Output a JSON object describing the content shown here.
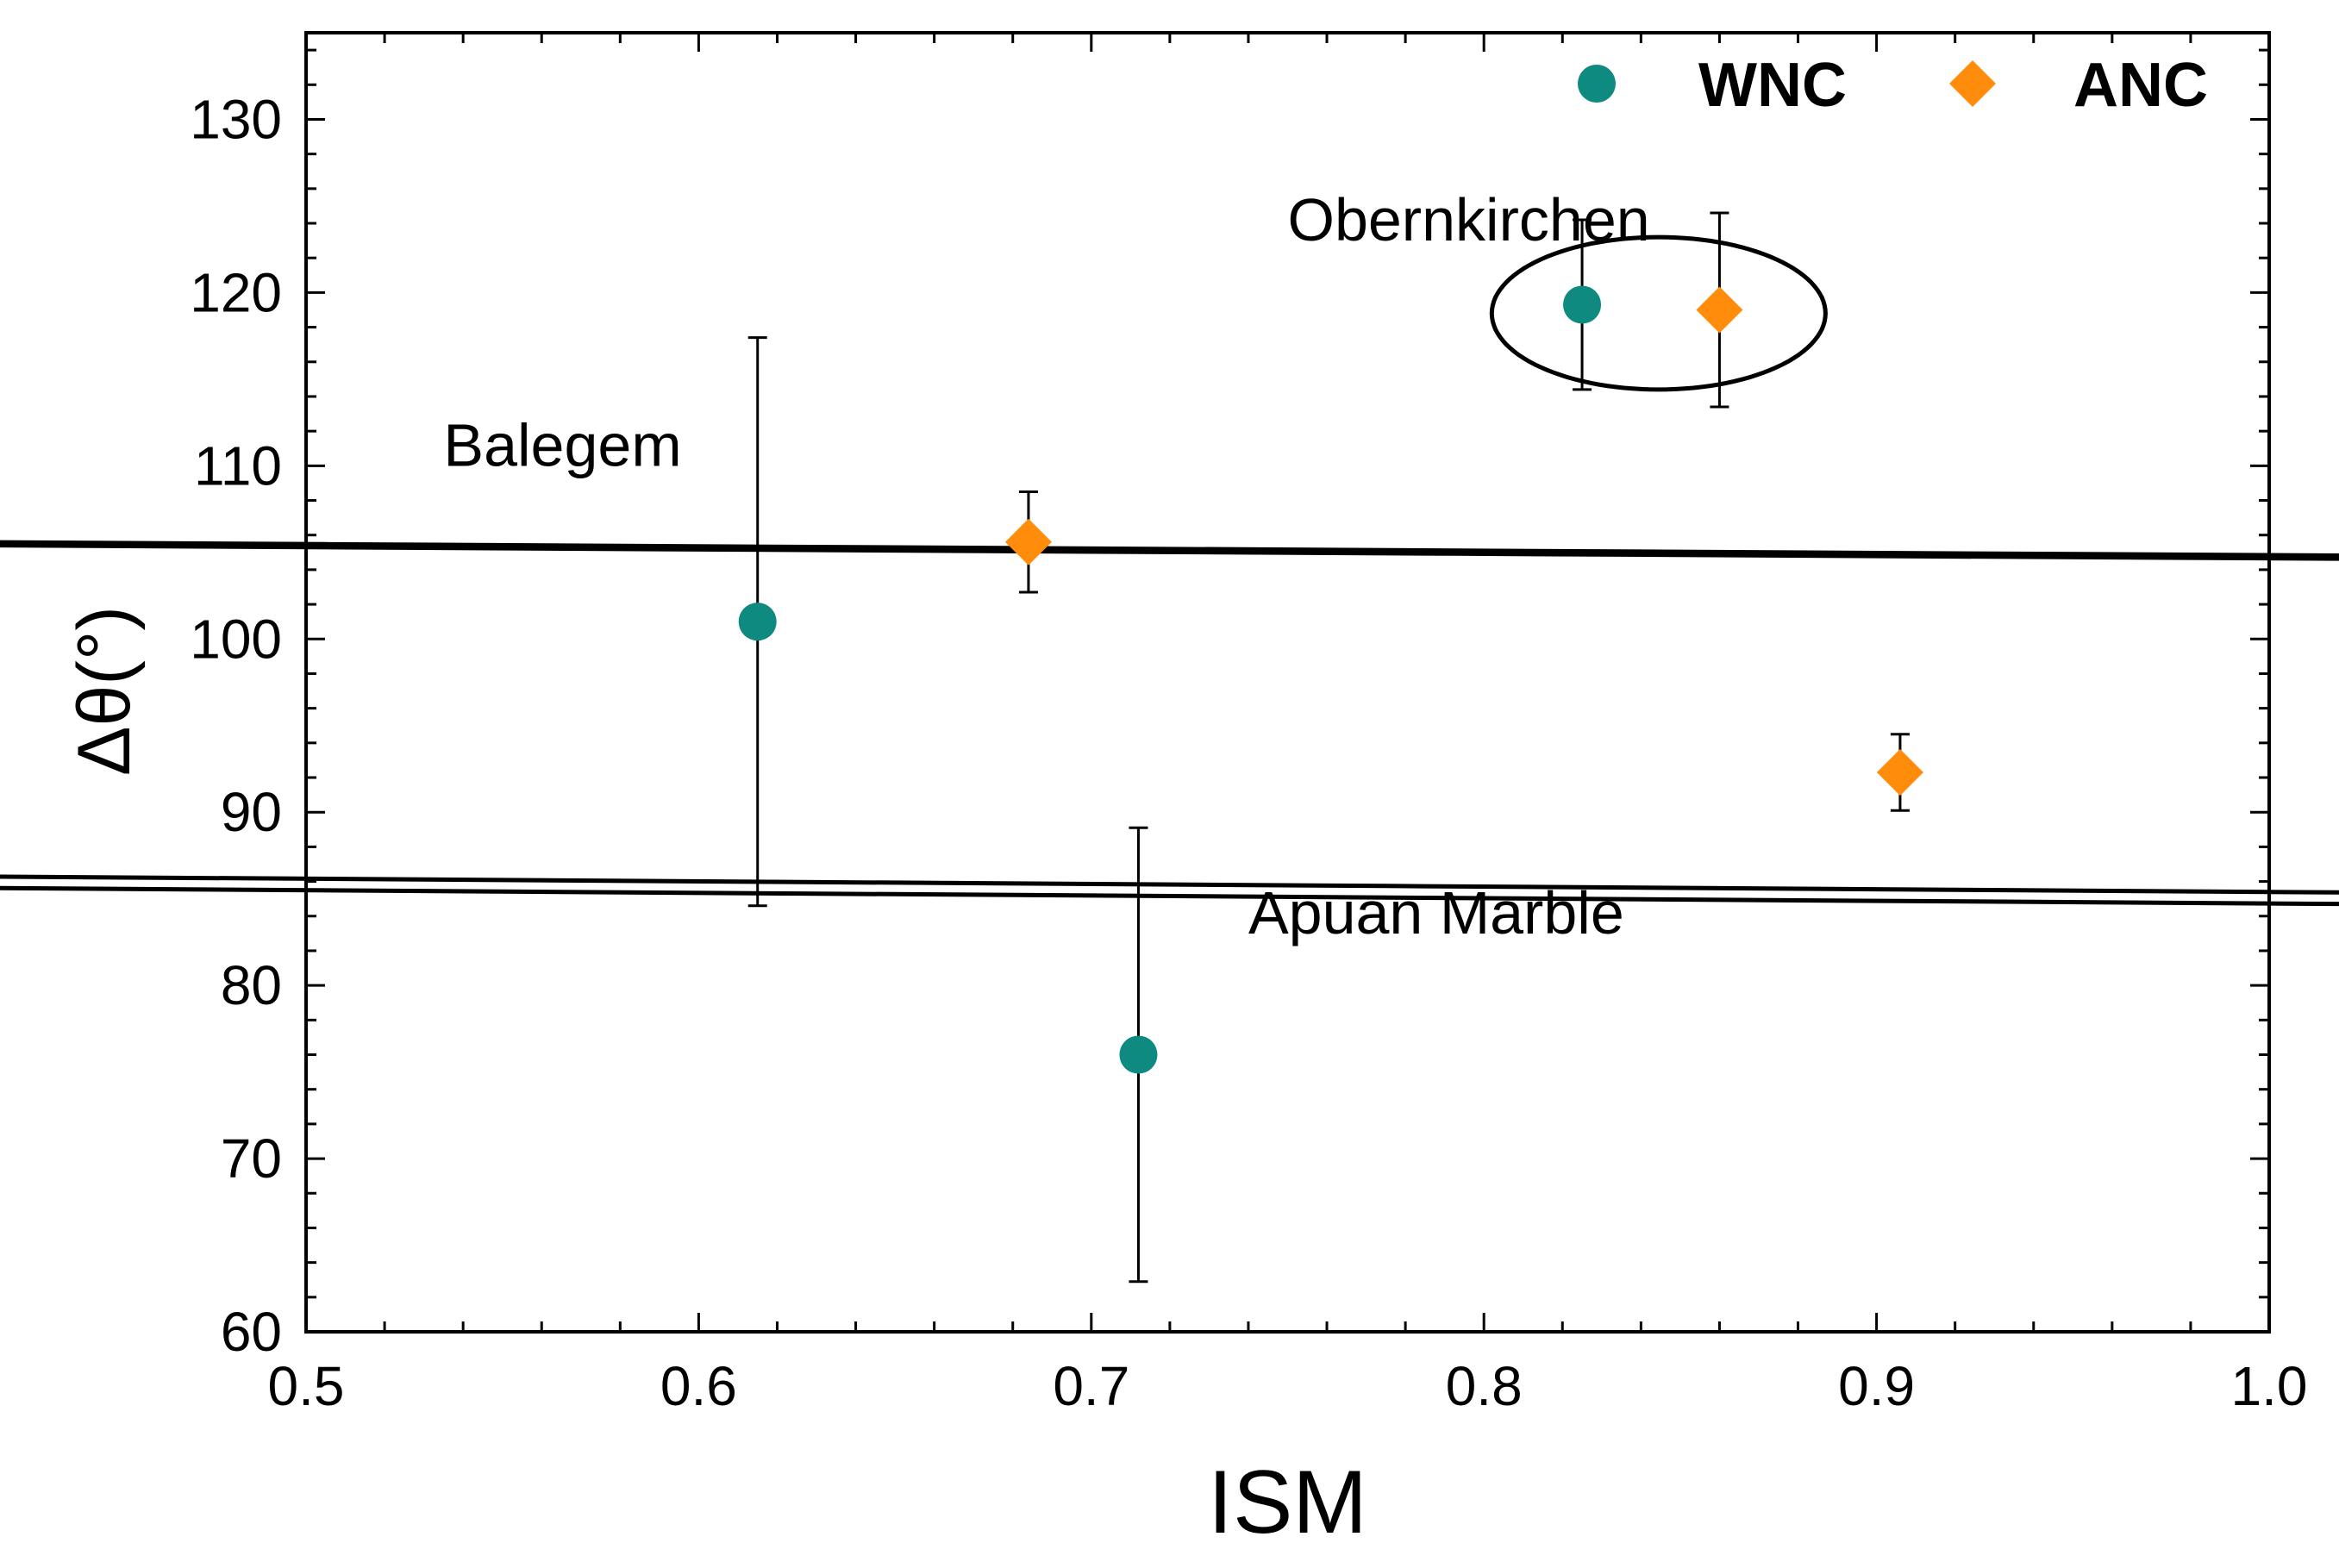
{
  "chart_data": {
    "type": "scatter",
    "title": "",
    "xlabel": "ISM",
    "ylabel": "Δθ(°)",
    "xlim": [
      0.5,
      1.0
    ],
    "ylim": [
      60,
      135
    ],
    "x_ticks": [
      0.5,
      0.6,
      0.7,
      0.8,
      0.9,
      1.0
    ],
    "x_tick_labels": [
      "0.5",
      "0.6",
      "0.7",
      "0.8",
      "0.9",
      "1.0"
    ],
    "y_ticks": [
      60,
      70,
      80,
      90,
      100,
      110,
      120,
      130
    ],
    "y_tick_labels": [
      "60",
      "70",
      "80",
      "90",
      "100",
      "110",
      "120",
      "130"
    ],
    "grid": false,
    "legend_position": "top-right",
    "series": [
      {
        "name": "WNC",
        "marker": "circle",
        "color": "#0e8a80",
        "points": [
          {
            "group": "Balegem",
            "x": 0.615,
            "y": 101.0,
            "err_low": 84.6,
            "err_high": 117.4
          },
          {
            "group": "Obernkirchen",
            "x": 0.825,
            "y": 119.3,
            "err_low": 114.4,
            "err_high": 124.2
          },
          {
            "group": "Apuan Marble",
            "x": 0.712,
            "y": 76.0,
            "err_low": 62.9,
            "err_high": 89.1
          }
        ]
      },
      {
        "name": "ANC",
        "marker": "diamond",
        "color": "#ff8c0a",
        "points": [
          {
            "group": "Balegem",
            "x": 0.684,
            "y": 105.6,
            "err_low": 102.7,
            "err_high": 108.5
          },
          {
            "group": "Obernkirchen",
            "x": 0.86,
            "y": 119.0,
            "err_low": 113.4,
            "err_high": 124.6
          },
          {
            "group": "Apuan Marble",
            "x": 0.906,
            "y": 92.3,
            "err_low": 90.1,
            "err_high": 94.5
          }
        ]
      }
    ],
    "annotations": [
      {
        "text": "Balegem",
        "x": 0.535,
        "y": 110
      },
      {
        "text": "Obernkirchen",
        "x": 0.75,
        "y": 123
      },
      {
        "text": "Apuan Marble",
        "x": 0.74,
        "y": 83
      }
    ],
    "group_ellipses": [
      {
        "group": "Balegem",
        "center_x": 0.6485,
        "center_y": 105.2,
        "rx": 0.0545,
        "ry": 5.8,
        "angle_deg": 38
      },
      {
        "group": "Obernkirchen",
        "center_x": 0.8445,
        "center_y": 118.8,
        "rx": 0.0425,
        "ry": 4.4,
        "angle_deg": 0
      },
      {
        "group": "Apuan Marble",
        "center_x": 0.7795,
        "center_y": 85.4,
        "rx": 0.1825,
        "ry": 5.5,
        "angle_deg": 33
      }
    ]
  }
}
